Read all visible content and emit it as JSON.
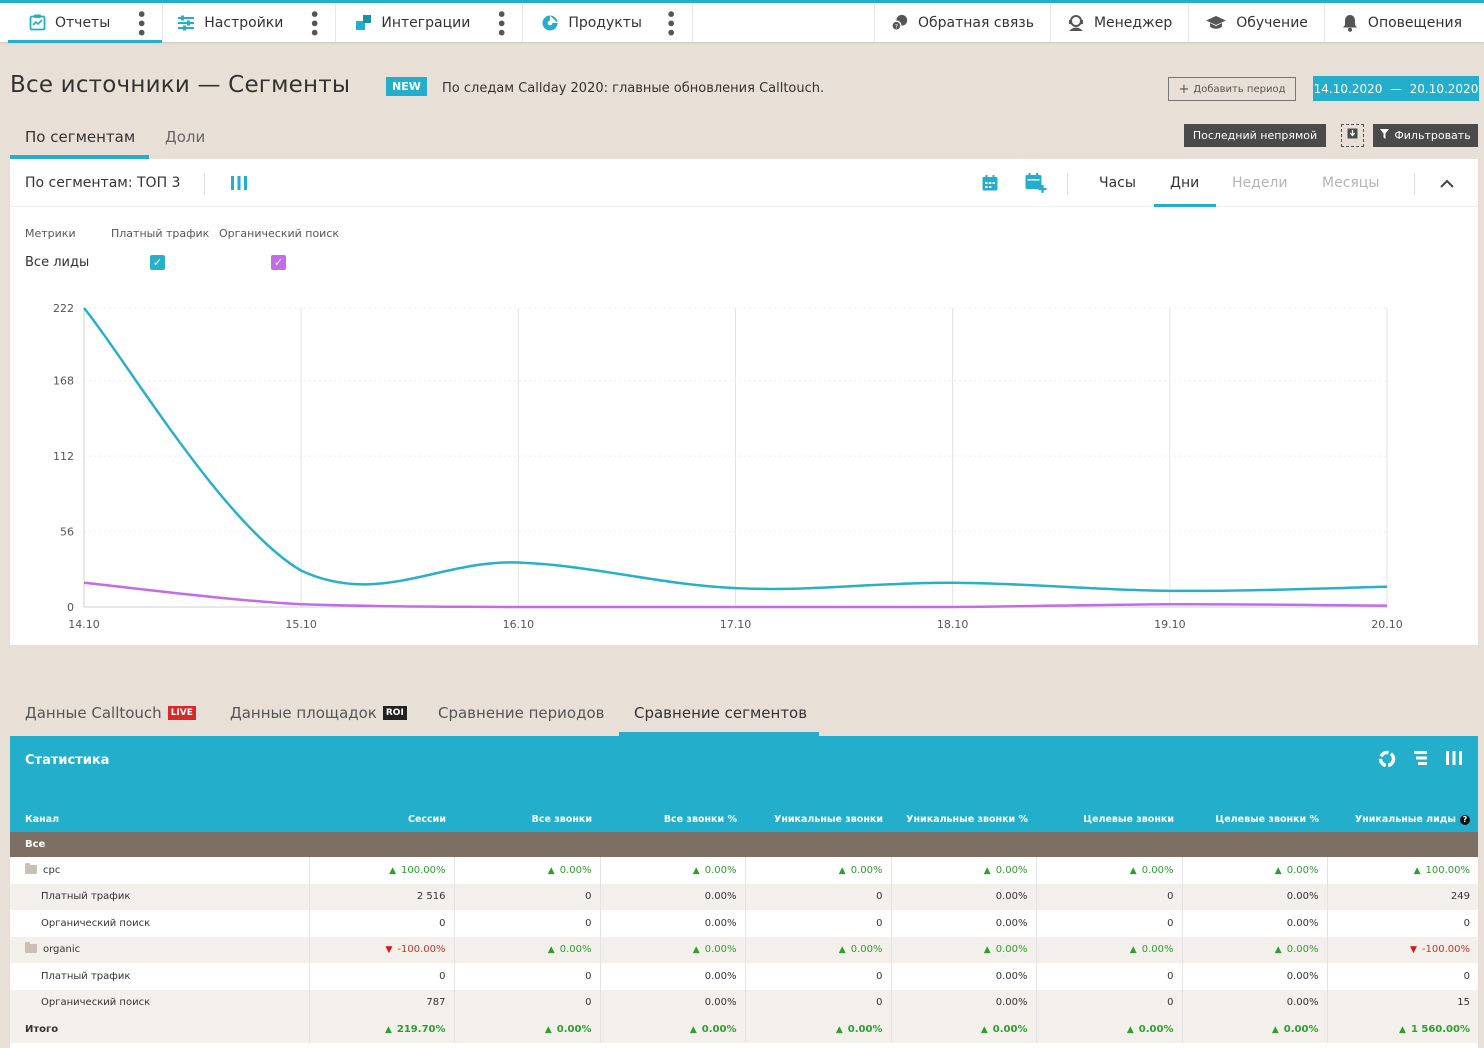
{
  "nav": {
    "left": [
      {
        "label": "Отчеты",
        "icon": "reports-icon"
      },
      {
        "label": "Настройки",
        "icon": "settings-sliders-icon"
      },
      {
        "label": "Интеграции",
        "icon": "integrations-icon"
      },
      {
        "label": "Продукты",
        "icon": "products-icon"
      }
    ],
    "right": [
      {
        "label": "Обратная связь",
        "icon": "feedback-icon"
      },
      {
        "label": "Менеджер",
        "icon": "manager-icon"
      },
      {
        "label": "Обучение",
        "icon": "education-icon"
      },
      {
        "label": "Оповещения",
        "icon": "bell-icon"
      }
    ]
  },
  "header": {
    "title": "Все источники — Сегменты",
    "new_badge": "NEW",
    "news": "По следам Callday 2020: главные обновления Calltouch.",
    "add_period": "Добавить период",
    "date_range": "14.10.2020  —  20.10.2020"
  },
  "tabs_top": {
    "segments": "По сегментам",
    "shares": "Доли"
  },
  "toolbar": {
    "attribution": "Последний непрямой",
    "filter": "Фильтровать"
  },
  "chart_panel": {
    "title": "По сегментам: ТОП 3",
    "granularity": [
      "Часы",
      "Дни",
      "Недели",
      "Месяцы"
    ],
    "metrics_label": "Метрики",
    "legend": [
      "Платный трафик",
      "Органический поиск"
    ],
    "metric_name": "Все лиды"
  },
  "chart_data": {
    "type": "line",
    "x": [
      "14.10",
      "15.10",
      "16.10",
      "17.10",
      "18.10",
      "19.10",
      "20.10"
    ],
    "yticks": [
      0,
      56,
      112,
      168,
      222
    ],
    "ylim": [
      0,
      222
    ],
    "series": [
      {
        "name": "Платный трафик",
        "color": "#29b0c9",
        "values": [
          222,
          27,
          33,
          14,
          18,
          12,
          15
        ]
      },
      {
        "name": "Органический поиск",
        "color": "#c46be8",
        "values": [
          18,
          2,
          0,
          0,
          0,
          2,
          1
        ]
      }
    ]
  },
  "bottom_tabs": [
    {
      "label": "Данные Calltouch",
      "tag": "LIVE"
    },
    {
      "label": "Данные площадок",
      "tag": "ROI"
    },
    {
      "label": "Сравнение периодов",
      "tag": ""
    },
    {
      "label": "Сравнение сегментов",
      "tag": ""
    }
  ],
  "stats": {
    "title": "Статистика",
    "columns": [
      "Канал",
      "Сессии",
      "Все звонки",
      "Все звонки %",
      "Уникальные звонки",
      "Уникальные звонки %",
      "Целевые звонки",
      "Целевые звонки %",
      "Уникальные лиды"
    ],
    "group_label": "Все",
    "rows": [
      {
        "kind": "folder",
        "cells": [
          "cpc",
          "100.00%",
          "0.00%",
          "0.00%",
          "0.00%",
          "0.00%",
          "0.00%",
          "0.00%",
          "100.00%"
        ],
        "dirs": [
          "up",
          "up",
          "up",
          "up",
          "up",
          "up",
          "up",
          "up"
        ]
      },
      {
        "kind": "sub",
        "cells": [
          "Платный трафик",
          "2 516",
          "0",
          "0.00%",
          "0",
          "0.00%",
          "0",
          "0.00%",
          "249"
        ]
      },
      {
        "kind": "sub",
        "cells": [
          "Органический поиск",
          "0",
          "0",
          "0.00%",
          "0",
          "0.00%",
          "0",
          "0.00%",
          "0"
        ]
      },
      {
        "kind": "folder",
        "cells": [
          "organic",
          "-100.00%",
          "0.00%",
          "0.00%",
          "0.00%",
          "0.00%",
          "0.00%",
          "0.00%",
          "-100.00%"
        ],
        "dirs": [
          "down",
          "up",
          "up",
          "up",
          "up",
          "up",
          "up",
          "down"
        ]
      },
      {
        "kind": "sub",
        "cells": [
          "Платный трафик",
          "0",
          "0",
          "0.00%",
          "0",
          "0.00%",
          "0",
          "0.00%",
          "0"
        ]
      },
      {
        "kind": "sub",
        "cells": [
          "Органический поиск",
          "787",
          "0",
          "0.00%",
          "0",
          "0.00%",
          "0",
          "0.00%",
          "15"
        ]
      },
      {
        "kind": "total",
        "cells": [
          "Итого",
          "219.70%",
          "0.00%",
          "0.00%",
          "0.00%",
          "0.00%",
          "0.00%",
          "0.00%",
          "1 560.00%"
        ],
        "dirs": [
          "up",
          "up",
          "up",
          "up",
          "up",
          "up",
          "up",
          "up"
        ]
      }
    ]
  }
}
